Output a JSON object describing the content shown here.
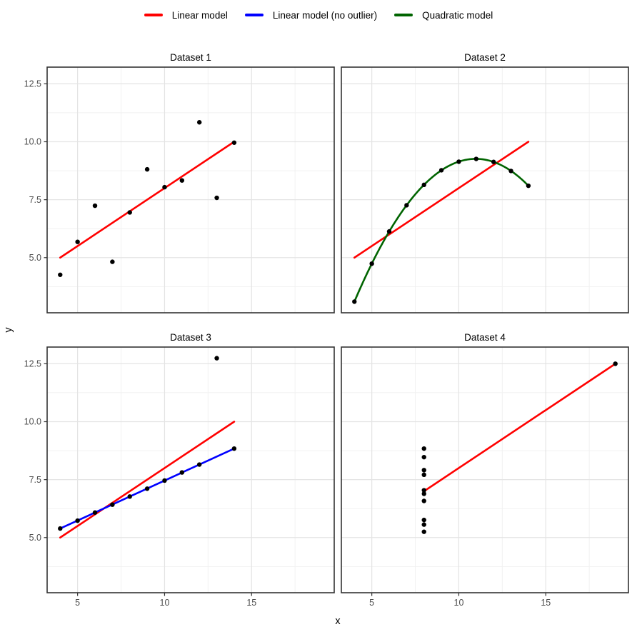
{
  "legend": {
    "items": [
      {
        "label": "Linear model",
        "color": "#FF0000"
      },
      {
        "label": "Linear model (no outlier)",
        "color": "#0000FF"
      },
      {
        "label": "Quadratic model",
        "color": "#006400"
      }
    ]
  },
  "chart_data": {
    "type": "scatter",
    "title": "",
    "xlabel": "x",
    "ylabel": "y",
    "x_ticks": [
      5,
      10,
      15
    ],
    "x_tick_labels": [
      "5",
      "10",
      "15"
    ],
    "y_ticks": [
      5.0,
      7.5,
      10.0,
      12.5
    ],
    "y_tick_labels": [
      "5.0",
      "7.5",
      "10.0",
      "12.5"
    ],
    "x_minor": [
      7.5,
      12.5,
      17.5
    ],
    "y_minor": [
      3.75,
      6.25,
      8.75,
      11.25
    ],
    "x_range": [
      3.25,
      19.75
    ],
    "y_range": [
      2.62,
      13.22
    ],
    "grid": true,
    "legend_position": "top",
    "panels": [
      {
        "title": "Dataset 1",
        "points": [
          [
            10,
            8.04
          ],
          [
            8,
            6.95
          ],
          [
            13,
            7.58
          ],
          [
            9,
            8.81
          ],
          [
            11,
            8.33
          ],
          [
            14,
            9.96
          ],
          [
            6,
            7.24
          ],
          [
            4,
            4.26
          ],
          [
            12,
            10.84
          ],
          [
            7,
            4.82
          ],
          [
            5,
            5.68
          ]
        ],
        "lines": [
          {
            "name": "Linear model",
            "color": "#FF0000",
            "x": [
              4,
              14
            ],
            "y": [
              5.0,
              10.0
            ]
          }
        ],
        "curves": []
      },
      {
        "title": "Dataset 2",
        "points": [
          [
            10,
            9.14
          ],
          [
            8,
            8.14
          ],
          [
            13,
            8.74
          ],
          [
            9,
            8.77
          ],
          [
            11,
            9.26
          ],
          [
            14,
            8.1
          ],
          [
            6,
            6.13
          ],
          [
            4,
            3.1
          ],
          [
            12,
            9.13
          ],
          [
            7,
            7.26
          ],
          [
            5,
            4.74
          ]
        ],
        "lines": [
          {
            "name": "Linear model",
            "color": "#FF0000",
            "x": [
              4,
              14
            ],
            "y": [
              5.0,
              10.0
            ]
          }
        ],
        "curves": [
          {
            "name": "Quadratic model",
            "color": "#006400",
            "coef": [
              -5.9957,
              2.7808,
              -0.1267
            ],
            "x_domain": [
              4,
              14
            ]
          }
        ]
      },
      {
        "title": "Dataset 3",
        "points": [
          [
            10,
            7.46
          ],
          [
            8,
            6.77
          ],
          [
            13,
            12.74
          ],
          [
            9,
            7.11
          ],
          [
            11,
            7.81
          ],
          [
            14,
            8.84
          ],
          [
            6,
            6.08
          ],
          [
            4,
            5.39
          ],
          [
            12,
            8.15
          ],
          [
            7,
            6.42
          ],
          [
            5,
            5.73
          ]
        ],
        "lines": [
          {
            "name": "Linear model",
            "color": "#FF0000",
            "x": [
              4,
              14
            ],
            "y": [
              5.0,
              10.0
            ]
          },
          {
            "name": "Linear model (no outlier)",
            "color": "#0000FF",
            "x": [
              4,
              14
            ],
            "y": [
              5.39,
              8.84
            ]
          }
        ],
        "curves": []
      },
      {
        "title": "Dataset 4",
        "points": [
          [
            8,
            6.58
          ],
          [
            8,
            5.76
          ],
          [
            8,
            7.71
          ],
          [
            8,
            8.84
          ],
          [
            8,
            8.47
          ],
          [
            8,
            7.04
          ],
          [
            8,
            5.25
          ],
          [
            19,
            12.5
          ],
          [
            8,
            5.56
          ],
          [
            8,
            7.91
          ],
          [
            8,
            6.89
          ]
        ],
        "lines": [
          {
            "name": "Linear model",
            "color": "#FF0000",
            "x": [
              8,
              19
            ],
            "y": [
              7.0,
              12.5
            ]
          }
        ],
        "curves": []
      }
    ]
  },
  "style": {
    "background": "#FFFFFF",
    "panel_background": "#FFFFFF",
    "panel_border": "#333333",
    "grid_major": "#E4E4E4",
    "grid_minor": "#F1F1F1",
    "tick_color": "#333333",
    "tick_label_color": "#4D4D4D",
    "point_color": "#000000",
    "title_color": "#000000",
    "axis_label_color": "#000000"
  }
}
